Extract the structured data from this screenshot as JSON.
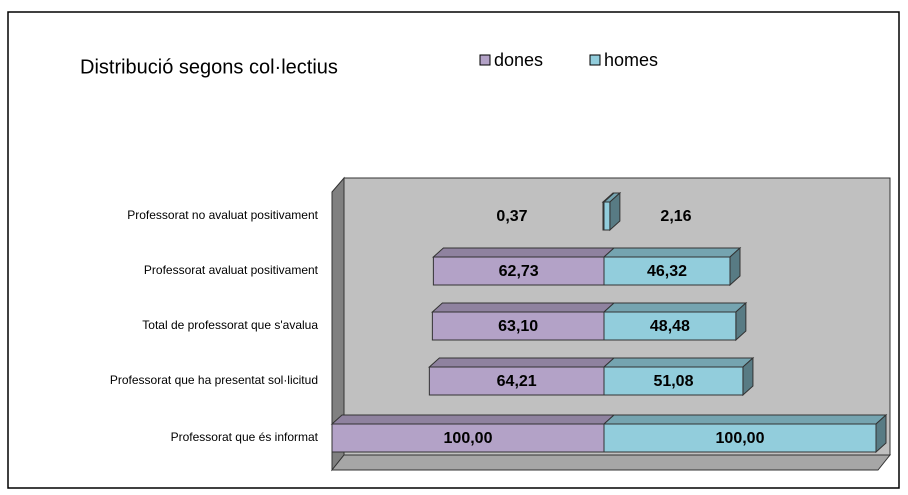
{
  "chart_data": {
    "type": "bar",
    "title": "Distribució segons col·lectius",
    "categories": [
      "Professorat no avaluat positivament",
      "Professorat avaluat positivament",
      "Total de professorat que s'avalua",
      "Professorat que ha presentat sol·licitud",
      "Professorat que és informat"
    ],
    "series": [
      {
        "name": "dones",
        "color": "#b3a2c7",
        "values": [
          0.37,
          62.73,
          63.1,
          64.21,
          100.0
        ],
        "value_labels": [
          "0,37",
          "62,73",
          "63,10",
          "64,21",
          "100,00"
        ]
      },
      {
        "name": "homes",
        "color": "#92cddc",
        "values": [
          2.16,
          46.32,
          48.48,
          51.08,
          100.0
        ],
        "value_labels": [
          "2,16",
          "46,32",
          "48,48",
          "51,08",
          "100,00"
        ]
      }
    ],
    "xlim": [
      0,
      100
    ]
  }
}
